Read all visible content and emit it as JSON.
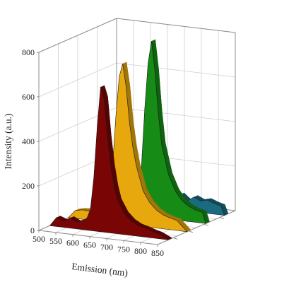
{
  "chart_data": {
    "type": "area",
    "xlabel": "Emission (nm)",
    "ylabel": "Intensity (a.u.)",
    "x_ticks": [
      "500",
      "550",
      "600",
      "650",
      "700",
      "750",
      "800",
      "850"
    ],
    "y_ticks": [
      "0",
      "200",
      "400",
      "600",
      "800"
    ],
    "xlim": [
      500,
      850
    ],
    "ylim": [
      0,
      800
    ],
    "grid": true,
    "series": [
      {
        "color": "#1a6b80",
        "x": [
          640,
          660,
          680,
          700,
          720,
          740,
          760,
          780,
          800,
          820,
          840,
          850
        ],
        "values": [
          0,
          35,
          62,
          50,
          70,
          45,
          66,
          52,
          60,
          48,
          40,
          0
        ]
      },
      {
        "color": "#168c16",
        "x": [
          560,
          580,
          600,
          620,
          640,
          660,
          670,
          680,
          690,
          700,
          710,
          720,
          740,
          760,
          780,
          800,
          820,
          840,
          850
        ],
        "values": [
          0,
          18,
          22,
          25,
          45,
          210,
          480,
          690,
          790,
          660,
          470,
          330,
          200,
          130,
          90,
          68,
          55,
          48,
          0
        ]
      },
      {
        "color": "#e6a80c",
        "x": [
          500,
          520,
          540,
          560,
          580,
          600,
          620,
          630,
          640,
          650,
          660,
          670,
          680,
          690,
          700,
          720,
          740,
          760,
          780,
          800,
          820,
          850
        ],
        "values": [
          0,
          35,
          42,
          40,
          38,
          44,
          110,
          250,
          480,
          660,
          720,
          620,
          460,
          350,
          270,
          160,
          110,
          80,
          62,
          52,
          45,
          0
        ]
      },
      {
        "color": "#7a0505",
        "x": [
          500,
          520,
          540,
          560,
          580,
          600,
          610,
          620,
          630,
          640,
          650,
          660,
          670,
          680,
          690,
          700,
          720,
          740,
          760,
          780,
          800,
          820,
          850
        ],
        "values": [
          0,
          40,
          28,
          45,
          30,
          42,
          55,
          95,
          240,
          470,
          650,
          600,
          430,
          300,
          210,
          150,
          95,
          65,
          48,
          40,
          30,
          22,
          0
        ]
      }
    ]
  }
}
